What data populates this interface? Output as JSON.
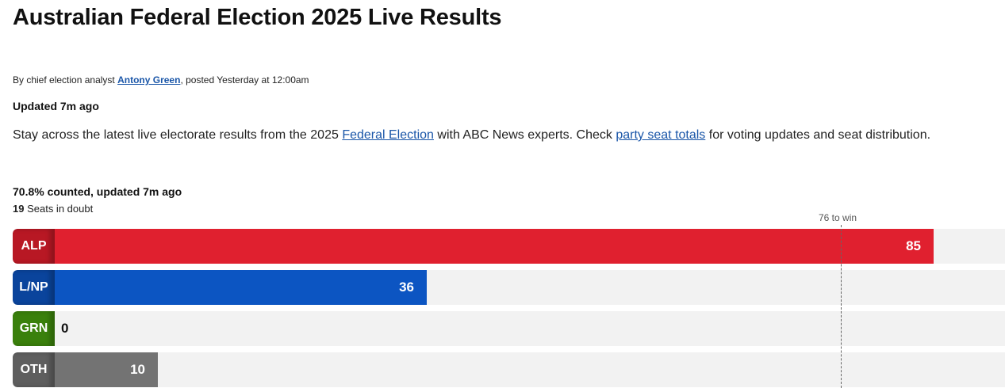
{
  "header": {
    "title": "Australian Federal Election 2025 Live Results"
  },
  "byline": {
    "prefix": "By chief election analyst",
    "author": "Antony Green",
    "posted": ", posted Yesterday at  12:00am"
  },
  "updated": "Updated 7m ago",
  "intro": {
    "part1": "Stay across the latest live electorate results from the 2025 ",
    "link1": "Federal Election",
    "part2": " with ABC News experts. Check ",
    "link2": "party seat totals",
    "part3": " for voting updates and seat distribution."
  },
  "summary": {
    "counted": "70.8% counted, updated 7m ago",
    "doubt_count": "19",
    "doubt_label": " Seats in doubt",
    "win_label": "76 to win"
  },
  "colors": {
    "ALP": "#e0202f",
    "ALP_dark": "#b81824",
    "LNP": "#0c55c2",
    "LNP_dark": "#0a449c",
    "GRN": "#4aa011",
    "GRN_dark": "#3a800c",
    "OTH": "#737373",
    "OTH_dark": "#5e5e5e"
  },
  "chart_data": {
    "type": "bar",
    "categories": [
      "ALP",
      "L/NP",
      "GRN",
      "OTH"
    ],
    "values": [
      85,
      36,
      0,
      10
    ],
    "threshold": 76,
    "threshold_label": "76 to win",
    "xlim": [
      0,
      96
    ]
  }
}
